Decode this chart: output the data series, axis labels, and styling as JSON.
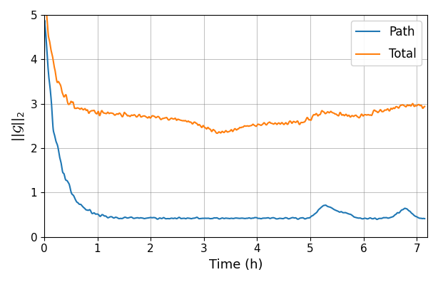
{
  "title": "",
  "xlabel": "Time (h)",
  "ylabel": "$||\\mathcal{G}||_2$",
  "xlim": [
    0,
    7.2
  ],
  "ylim": [
    0,
    5
  ],
  "xticks": [
    0,
    1,
    2,
    3,
    4,
    5,
    6,
    7
  ],
  "yticks": [
    0,
    1,
    2,
    3,
    4,
    5
  ],
  "path_color": "#1f77b4",
  "total_color": "#ff7f0e",
  "line_width": 1.5,
  "legend_labels": [
    "Path",
    "Total"
  ],
  "grid": true,
  "background_color": "#ffffff",
  "figsize": [
    6.14,
    3.96
  ],
  "dpi": 100
}
